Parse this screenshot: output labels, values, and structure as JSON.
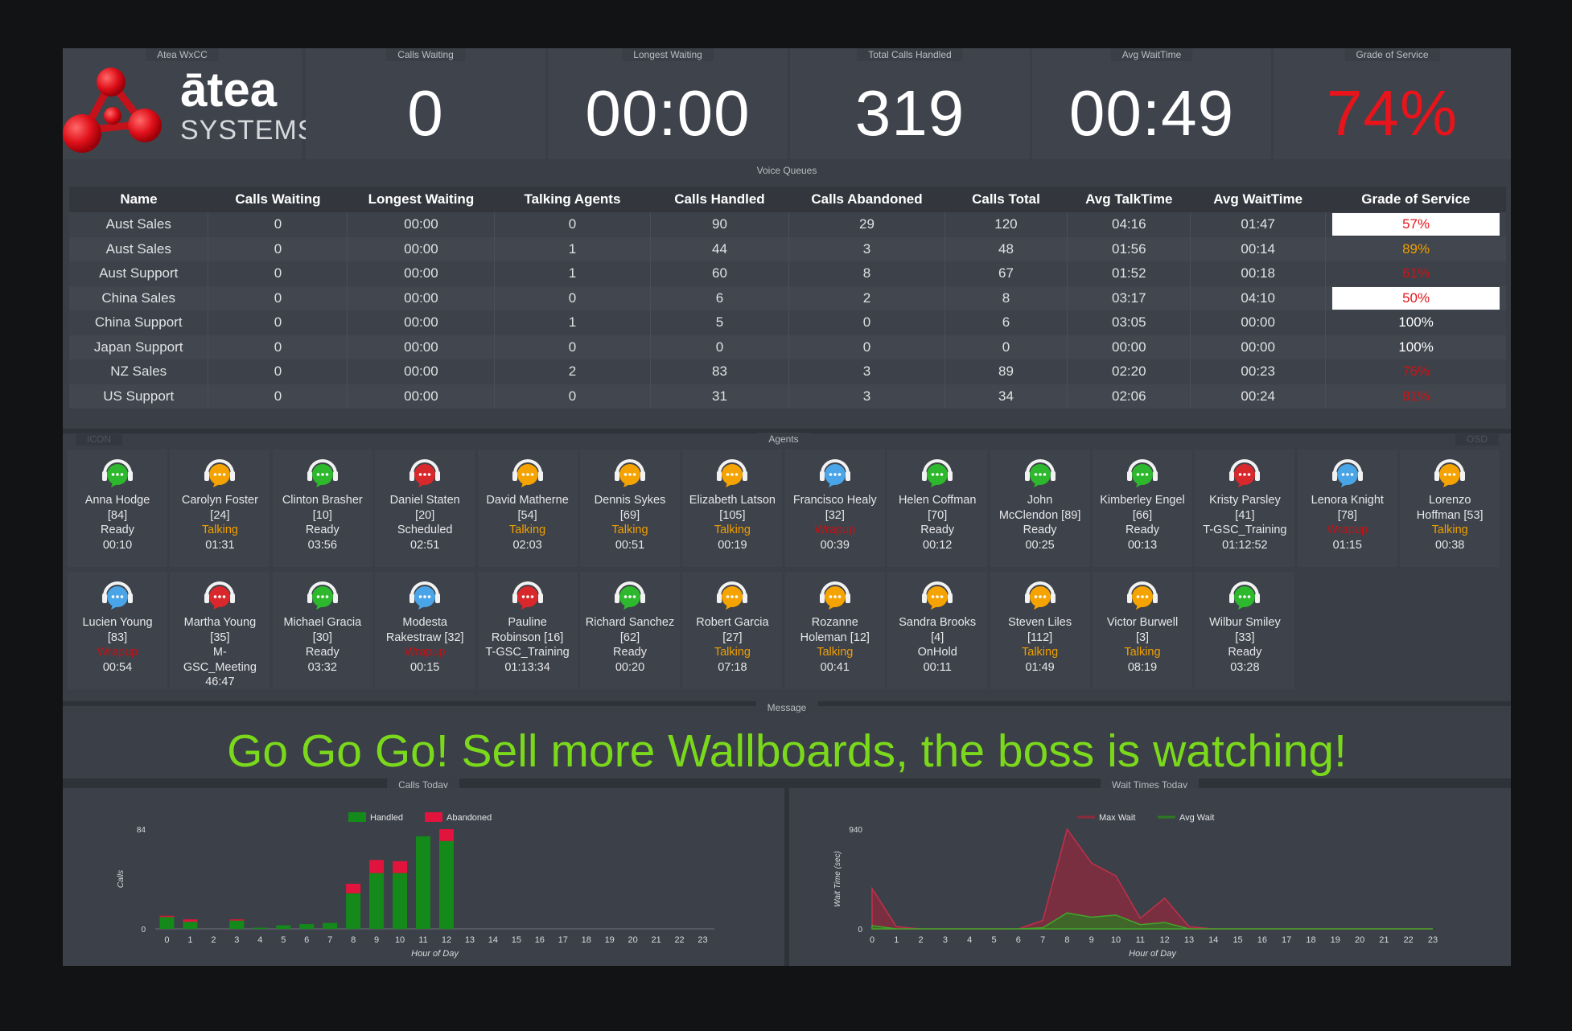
{
  "header": {
    "logo_word": "ātea",
    "logo_sub": "SYSTEMS",
    "tiles": [
      {
        "label": "Atea WxCC"
      },
      {
        "label": "Calls Waiting",
        "value": "0"
      },
      {
        "label": "Longest Waiting",
        "value": "00:00"
      },
      {
        "label": "Total Calls Handled",
        "value": "319"
      },
      {
        "label": "Avg WaitTime",
        "value": "00:49"
      },
      {
        "label": "Grade of Service",
        "value": "74%"
      }
    ]
  },
  "colors": {
    "green": "#2db82d",
    "orange": "#f5a300",
    "red": "#d8282c",
    "blue": "#4aa5e8",
    "talking": "#f0a000",
    "wrapup": "#c41216",
    "message": "#7bd91c"
  },
  "queues": {
    "title": "Voice Queues",
    "columns": [
      "Name",
      "Calls Waiting",
      "Longest Waiting",
      "Talking Agents",
      "Calls Handled",
      "Calls Abandoned",
      "Calls Total",
      "Avg TalkTime",
      "Avg WaitTime",
      "Grade of Service"
    ],
    "rows": [
      {
        "cells": [
          "Aust Sales",
          "0",
          "00:00",
          "0",
          "90",
          "29",
          "120",
          "04:16",
          "01:47"
        ],
        "gos": "57%",
        "gos_style": "white"
      },
      {
        "cells": [
          "Aust Sales",
          "0",
          "00:00",
          "1",
          "44",
          "3",
          "48",
          "01:56",
          "00:14"
        ],
        "gos": "89%",
        "gos_style": "orange"
      },
      {
        "cells": [
          "Aust Support",
          "0",
          "00:00",
          "1",
          "60",
          "8",
          "67",
          "01:52",
          "00:18"
        ],
        "gos": "61%",
        "gos_style": "red"
      },
      {
        "cells": [
          "China Sales",
          "0",
          "00:00",
          "0",
          "6",
          "2",
          "8",
          "03:17",
          "04:10"
        ],
        "gos": "50%",
        "gos_style": "white"
      },
      {
        "cells": [
          "China Support",
          "0",
          "00:00",
          "1",
          "5",
          "0",
          "6",
          "03:05",
          "00:00"
        ],
        "gos": "100%",
        "gos_style": "plain"
      },
      {
        "cells": [
          "Japan Support",
          "0",
          "00:00",
          "0",
          "0",
          "0",
          "0",
          "00:00",
          "00:00"
        ],
        "gos": "100%",
        "gos_style": "plain"
      },
      {
        "cells": [
          "NZ Sales",
          "0",
          "00:00",
          "2",
          "83",
          "3",
          "89",
          "02:20",
          "00:23"
        ],
        "gos": "76%",
        "gos_style": "red"
      },
      {
        "cells": [
          "US Support",
          "0",
          "00:00",
          "0",
          "31",
          "3",
          "34",
          "02:06",
          "00:24"
        ],
        "gos": "81%",
        "gos_style": "red"
      }
    ]
  },
  "agents": {
    "title": "Agents",
    "left_tag": "ICON",
    "right_tag": "OSD",
    "list": [
      {
        "name": "Anna Hodge",
        "id": "[84]",
        "status": "Ready",
        "time": "00:10",
        "color": "green"
      },
      {
        "name": "Carolyn Foster",
        "id": "[24]",
        "status": "Talking",
        "time": "01:31",
        "color": "orange"
      },
      {
        "name": "Clinton Brasher",
        "id": "[10]",
        "status": "Ready",
        "time": "03:56",
        "color": "green"
      },
      {
        "name": "Daniel Staten",
        "id": "[20]",
        "status": "Scheduled",
        "time": "02:51",
        "color": "red"
      },
      {
        "name": "David Matherne",
        "id": "[54]",
        "status": "Talking",
        "time": "02:03",
        "color": "orange"
      },
      {
        "name": "Dennis Sykes",
        "id": "[69]",
        "status": "Talking",
        "time": "00:51",
        "color": "orange"
      },
      {
        "name": "Elizabeth Latson",
        "id": "[105]",
        "status": "Talking",
        "time": "00:19",
        "color": "orange"
      },
      {
        "name": "Francisco Healy",
        "id": "[32]",
        "status": "Wrapup",
        "time": "00:39",
        "color": "blue"
      },
      {
        "name": "Helen Coffman",
        "id": "[70]",
        "status": "Ready",
        "time": "00:12",
        "color": "green"
      },
      {
        "name": "John",
        "id": "McClendon [89]",
        "status": "Ready",
        "time": "00:25",
        "color": "green"
      },
      {
        "name": "Kimberley Engel",
        "id": "[66]",
        "status": "Ready",
        "time": "00:13",
        "color": "green"
      },
      {
        "name": "Kristy Parsley",
        "id": "[41]",
        "status": "T-GSC_Training",
        "time": "01:12:52",
        "color": "red"
      },
      {
        "name": "Lenora Knight",
        "id": "[78]",
        "status": "Wrapup",
        "time": "01:15",
        "color": "blue"
      },
      {
        "name": "Lorenzo",
        "id": "Hoffman [53]",
        "status": "Talking",
        "time": "00:38",
        "color": "orange"
      },
      {
        "name": "Lucien Young",
        "id": "[83]",
        "status": "Wrapup",
        "time": "00:54",
        "color": "blue"
      },
      {
        "name": "Martha Young",
        "id": "[35]",
        "status": "M-",
        "status2": "GSC_Meeting",
        "time": "46:47",
        "color": "red"
      },
      {
        "name": "Michael Gracia",
        "id": "[30]",
        "status": "Ready",
        "time": "03:32",
        "color": "green"
      },
      {
        "name": "Modesta",
        "id": "Rakestraw [32]",
        "status": "Wrapup",
        "time": "00:15",
        "color": "blue"
      },
      {
        "name": "Pauline",
        "id": "Robinson [16]",
        "status": "T-GSC_Training",
        "time": "01:13:34",
        "color": "red"
      },
      {
        "name": "Richard Sanchez",
        "id": "[62]",
        "status": "Ready",
        "time": "00:20",
        "color": "green"
      },
      {
        "name": "Robert Garcia",
        "id": "[27]",
        "status": "Talking",
        "time": "07:18",
        "color": "orange"
      },
      {
        "name": "Rozanne",
        "id": "Holeman [12]",
        "status": "Talking",
        "time": "00:41",
        "color": "orange"
      },
      {
        "name": "Sandra Brooks",
        "id": "[4]",
        "status": "OnHold",
        "time": "00:11",
        "color": "orange"
      },
      {
        "name": "Steven Liles",
        "id": "[112]",
        "status": "Talking",
        "time": "01:49",
        "color": "orange"
      },
      {
        "name": "Victor Burwell",
        "id": "[3]",
        "status": "Talking",
        "time": "08:19",
        "color": "orange"
      },
      {
        "name": "Wilbur Smiley",
        "id": "[33]",
        "status": "Ready",
        "time": "03:28",
        "color": "green"
      }
    ]
  },
  "message": {
    "title": "Message",
    "text": "Go Go Go! Sell more Wallboards, the boss is watching!"
  },
  "chart_data": [
    {
      "type": "bar",
      "title": "Calls Today",
      "xlabel": "Hour of Day",
      "ylabel": "Calls",
      "ylim": [
        0,
        84
      ],
      "stacked": true,
      "legend": "top-center",
      "categories": [
        "0",
        "1",
        "2",
        "3",
        "4",
        "5",
        "6",
        "7",
        "8",
        "9",
        "10",
        "11",
        "12",
        "13",
        "14",
        "15",
        "16",
        "17",
        "18",
        "19",
        "20",
        "21",
        "22",
        "23"
      ],
      "series": [
        {
          "name": "Handled",
          "color": "#138a1a",
          "values": [
            10,
            6,
            0,
            7,
            1,
            3,
            4,
            5,
            30,
            47,
            47,
            78,
            74,
            0,
            0,
            0,
            0,
            0,
            0,
            0,
            0,
            0,
            0,
            0
          ]
        },
        {
          "name": "Abandoned",
          "color": "#e0143c",
          "values": [
            1,
            2,
            0,
            1,
            0,
            0,
            0,
            0,
            8,
            11,
            10,
            0,
            10,
            0,
            0,
            0,
            0,
            0,
            0,
            0,
            0,
            0,
            0,
            0
          ]
        }
      ]
    },
    {
      "type": "area",
      "title": "Wait Times Today",
      "xlabel": "Hour of Day",
      "ylabel": "Wait Time (sec)",
      "ylim": [
        0,
        940
      ],
      "legend": "top-center",
      "x": [
        "0",
        "1",
        "2",
        "3",
        "4",
        "5",
        "6",
        "7",
        "8",
        "9",
        "10",
        "11",
        "12",
        "13",
        "14",
        "15",
        "16",
        "17",
        "18",
        "19",
        "20",
        "21",
        "22",
        "23"
      ],
      "series": [
        {
          "name": "Max Wait",
          "color": "#8f2a3e",
          "values": [
            380,
            20,
            0,
            0,
            0,
            0,
            0,
            80,
            940,
            620,
            500,
            100,
            290,
            20,
            0,
            0,
            0,
            0,
            0,
            0,
            0,
            0,
            0,
            0
          ]
        },
        {
          "name": "Avg Wait",
          "color": "#2e7a22",
          "values": [
            30,
            0,
            0,
            0,
            0,
            0,
            0,
            10,
            150,
            110,
            130,
            40,
            60,
            0,
            0,
            0,
            0,
            0,
            0,
            0,
            0,
            0,
            0,
            0
          ]
        }
      ]
    }
  ]
}
